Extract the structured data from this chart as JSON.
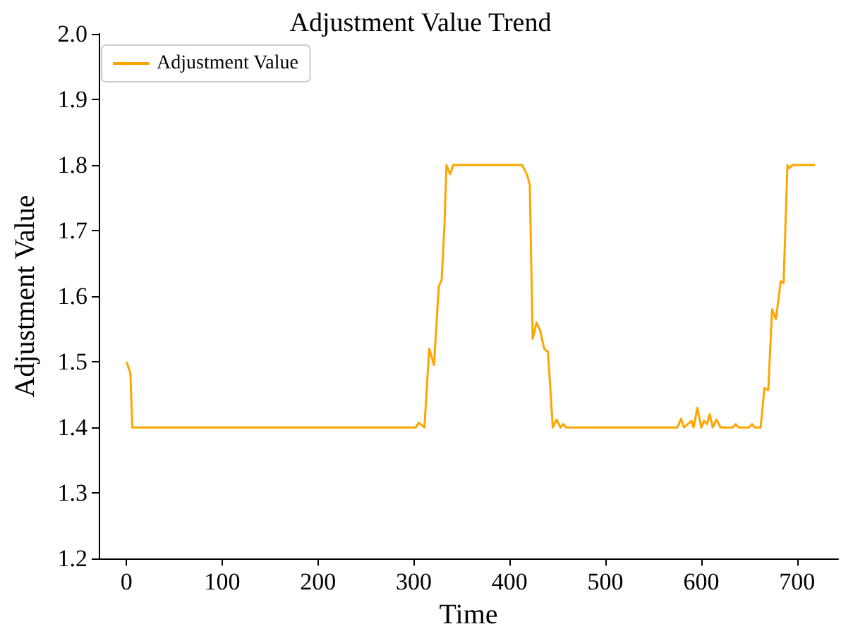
{
  "chart_data": {
    "type": "line",
    "title": "Adjustment Value Trend",
    "xlabel": "Time",
    "ylabel": "Adjustment Value",
    "xlim": [
      -29,
      743
    ],
    "xticks": [
      0,
      100,
      200,
      300,
      400,
      500,
      600,
      700
    ],
    "ylim": [
      1.2,
      2.0
    ],
    "yticks": [
      1.2,
      1.3,
      1.4,
      1.5,
      1.6,
      1.7,
      1.8,
      1.9,
      {
        "value": 2,
        "label": "2.0"
      }
    ],
    "grid": false,
    "legend": "top left",
    "marker": "none",
    "line_style": "solid",
    "x": [
      0,
      4,
      6,
      302,
      305,
      311,
      316,
      321,
      326,
      329,
      332,
      334,
      338,
      341,
      413,
      418,
      421,
      424,
      428,
      432,
      436,
      440,
      445,
      449,
      453,
      456,
      459,
      575,
      579,
      582,
      590,
      592,
      596,
      600,
      603,
      606,
      609,
      612,
      616,
      620,
      633,
      636,
      639,
      650,
      653,
      656,
      662,
      666,
      670,
      674,
      678,
      683,
      686,
      690,
      692,
      695,
      719
    ],
    "series": [
      {
        "name": "Adjustment Value",
        "color": "#ffa500",
        "values": [
          1.5,
          1.483,
          1.4,
          1.4,
          1.407,
          1.4,
          1.52,
          1.495,
          1.615,
          1.625,
          1.71,
          1.8,
          1.786,
          1.8,
          1.8,
          1.786,
          1.77,
          1.535,
          1.56,
          1.547,
          1.52,
          1.515,
          1.4,
          1.412,
          1.4,
          1.405,
          1.4,
          1.4,
          1.413,
          1.4,
          1.41,
          1.4,
          1.43,
          1.4,
          1.41,
          1.405,
          1.42,
          1.4,
          1.412,
          1.4,
          1.4,
          1.405,
          1.4,
          1.4,
          1.405,
          1.4,
          1.4,
          1.46,
          1.457,
          1.58,
          1.565,
          1.623,
          1.62,
          1.8,
          1.795,
          1.8,
          1.8
        ]
      }
    ]
  }
}
